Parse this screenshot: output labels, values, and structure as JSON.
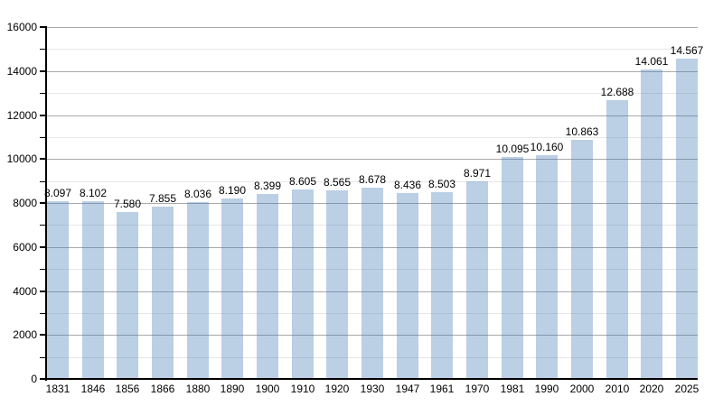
{
  "chart_data": {
    "type": "bar",
    "title": "",
    "xlabel": "",
    "ylabel": "",
    "categories": [
      "1831",
      "1846",
      "1856",
      "1866",
      "1880",
      "1890",
      "1900",
      "1910",
      "1920",
      "1930",
      "1947",
      "1961",
      "1970",
      "1981",
      "1990",
      "2000",
      "2010",
      "2020",
      "2025"
    ],
    "values": [
      8097,
      8102,
      7580,
      7855,
      8036,
      8190,
      8399,
      8605,
      8565,
      8678,
      8436,
      8503,
      8971,
      10095,
      10160,
      10863,
      12688,
      14061,
      14567
    ],
    "bar_labels": [
      "8.097",
      "8.102",
      "7.580",
      "7.855",
      "8.036",
      "8.190",
      "8.399",
      "8.605",
      "8.565",
      "8.678",
      "8.436",
      "8.503",
      "8.971",
      "10.095",
      "10.160",
      "10.863",
      "12.688",
      "14.061",
      "14.567"
    ],
    "ylim": [
      0,
      16000
    ],
    "y_major_ticks": [
      0,
      2000,
      4000,
      6000,
      8000,
      10000,
      12000,
      14000,
      16000
    ],
    "y_minor_interval": 1000,
    "grid": "horizontal major+minor",
    "legend_position": "none",
    "colors": {
      "bar_fill": "#bacfe5",
      "bar_fill_rgba": "rgba(59,117,181,0.35)",
      "major_gridline": "#a9a9a9",
      "minor_gridline": "#e7e7e7",
      "axis": "#000000",
      "text": "#000000",
      "background": "#ffffff"
    }
  }
}
